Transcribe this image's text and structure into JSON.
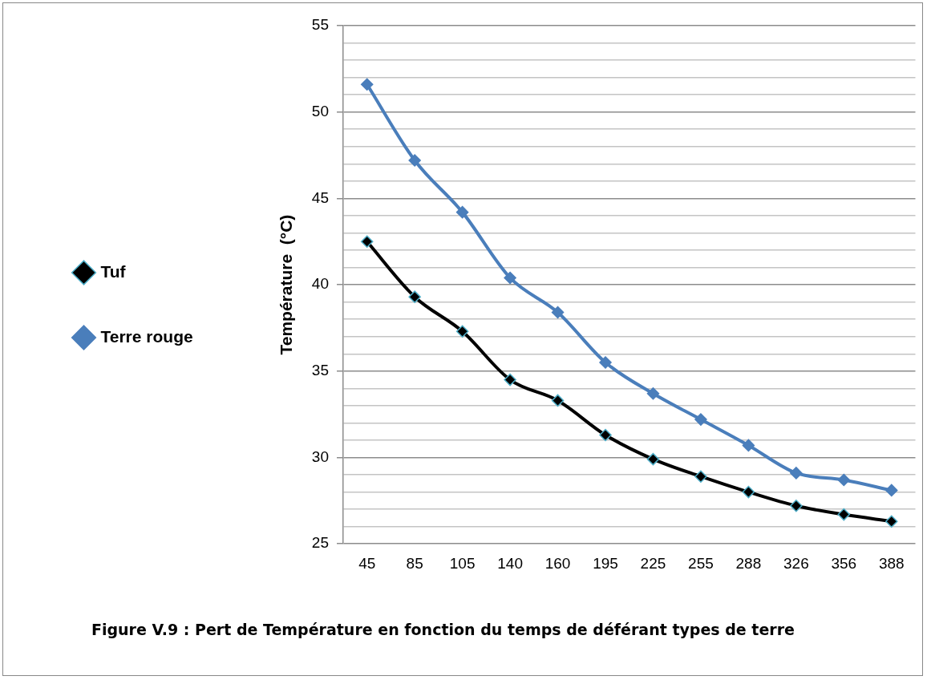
{
  "chart_data": {
    "type": "line",
    "ylabel": "Température  (°C)",
    "categories": [
      "45",
      "85",
      "105",
      "140",
      "160",
      "195",
      "225",
      "255",
      "288",
      "326",
      "356",
      "388"
    ],
    "series": [
      {
        "name": "Tuf",
        "color": "#000000",
        "values": [
          42.5,
          39.3,
          37.3,
          34.5,
          33.3,
          31.3,
          29.9,
          28.9,
          28.0,
          27.2,
          26.7,
          26.3
        ]
      },
      {
        "name": "Terre rouge",
        "color": "#4a7ebb",
        "values": [
          51.6,
          47.2,
          44.2,
          40.4,
          38.4,
          35.5,
          33.7,
          32.2,
          30.7,
          29.1,
          28.7,
          28.1
        ]
      }
    ],
    "ylim": [
      25,
      55
    ],
    "yticks": [
      25,
      {
        "value": 26,
        "label": null
      },
      {
        "value": 27,
        "label": null
      },
      {
        "value": 28,
        "label": null
      },
      {
        "value": 29,
        "label": null
      },
      30,
      {
        "value": 31,
        "label": null
      },
      {
        "value": 32,
        "label": null
      },
      {
        "value": 33,
        "label": null
      },
      {
        "value": 34,
        "label": null
      },
      35,
      {
        "value": 36,
        "label": null
      },
      {
        "value": 37,
        "label": null
      },
      {
        "value": 38,
        "label": null
      },
      {
        "value": 39,
        "label": null
      },
      40,
      {
        "value": 41,
        "label": null
      },
      {
        "value": 42,
        "label": null
      },
      {
        "value": 43,
        "label": null
      },
      {
        "value": 44,
        "label": null
      },
      45,
      {
        "value": 46,
        "label": null
      },
      {
        "value": 47,
        "label": null
      },
      {
        "value": 48,
        "label": null
      },
      {
        "value": 49,
        "label": null
      },
      50,
      {
        "value": 51,
        "label": null
      },
      {
        "value": 52,
        "label": null
      },
      {
        "value": 53,
        "label": null
      },
      {
        "value": 54,
        "label": null
      },
      55
    ],
    "grid": "y",
    "legend": "left",
    "marker": "diamond",
    "line_style": "solid",
    "annotations": [
      "Figure V.9 :  Pert de Température en fonction  du temps de déférant types de terre"
    ]
  }
}
